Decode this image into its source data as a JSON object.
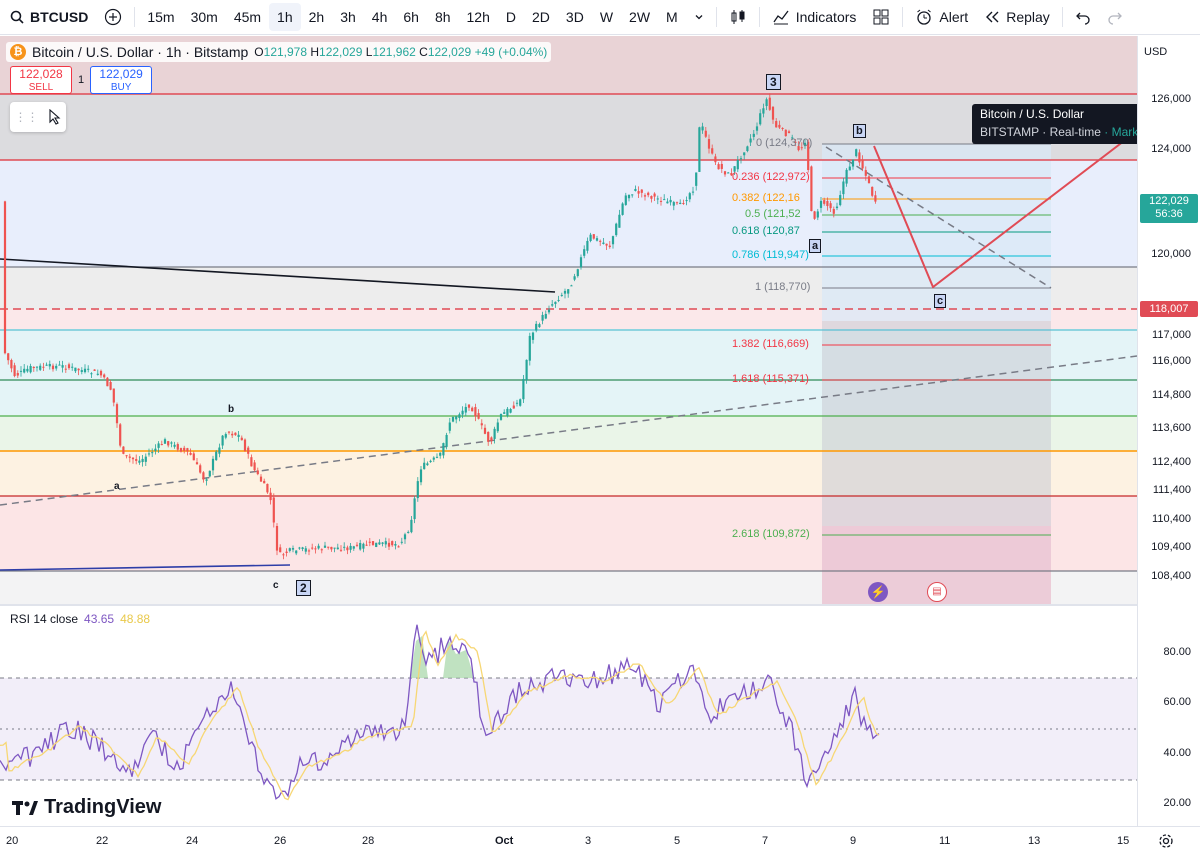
{
  "toolbar": {
    "symbol": "BTCUSD",
    "intervals": [
      "15m",
      "30m",
      "45m",
      "1h",
      "2h",
      "3h",
      "4h",
      "6h",
      "8h",
      "12h",
      "D",
      "2D",
      "3D",
      "W",
      "2W",
      "M"
    ],
    "active_interval": "1h",
    "indicators_label": "Indicators",
    "alert_label": "Alert",
    "replay_label": "Replay"
  },
  "legend": {
    "title": "Bitcoin / U.S. Dollar · 1h · Bitstamp",
    "open": "121,978",
    "high": "122,029",
    "low": "121,962",
    "close": "122,029",
    "change": "+49 (+0.04%)"
  },
  "trade": {
    "sell_price": "122,028",
    "sell_label": "SELL",
    "spread": "1",
    "buy_price": "122,029",
    "buy_label": "BUY"
  },
  "tooltip": {
    "title": "Bitcoin / U.S. Dollar",
    "exchange": "BITSTAMP",
    "feed": "Real-time",
    "status": "Market open"
  },
  "wave_labels": {
    "w3": "3",
    "w2": "2",
    "a": "a",
    "b": "b",
    "c": "c",
    "small_a": "a",
    "small_b": "b",
    "small_c": "c"
  },
  "fib_levels": [
    {
      "label": "0 (124,370)",
      "color": "#787b86"
    },
    {
      "label": "0.236 (122,972)",
      "color": "#f23645"
    },
    {
      "label": "0.382 (122,16",
      "color": "#ff9800"
    },
    {
      "label": "0.5 (121,52",
      "color": "#4caf50"
    },
    {
      "label": "0.618 (120,87",
      "color": "#089981"
    },
    {
      "label": "0.786 (119,947)",
      "color": "#00bcd4"
    },
    {
      "label": "1 (118,770)",
      "color": "#787b86"
    },
    {
      "label": "1.382 (116,669)",
      "color": "#f23645"
    },
    {
      "label": "1.618 (115,371)",
      "color": "#f23645"
    },
    {
      "label": "2.618 (109,872)",
      "color": "#4caf50"
    }
  ],
  "price_axis": {
    "currency": "USD",
    "ticks": [
      "126,000",
      "124,000",
      "120,000",
      "117,000",
      "116,000",
      "114,800",
      "113,600",
      "112,400",
      "111,400",
      "110,400",
      "109,400",
      "108,400"
    ],
    "current_price": "122,029",
    "countdown": "56:36",
    "level_tag": "118,007"
  },
  "rsi": {
    "label": "RSI 14 close",
    "value": "43.65",
    "ma_value": "48.88",
    "ticks": [
      "80.00",
      "60.00",
      "40.00",
      "20.00"
    ]
  },
  "time_axis": [
    "20",
    "22",
    "24",
    "26",
    "28",
    "Oct",
    "3",
    "5",
    "7",
    "9",
    "11",
    "13",
    "15"
  ],
  "brand": "TradingView",
  "colors": {
    "up": "#26a69a",
    "down": "#ef5350",
    "rsi": "#7e57c2",
    "rsi_ma": "#f7d774",
    "accent": "#2962ff"
  }
}
